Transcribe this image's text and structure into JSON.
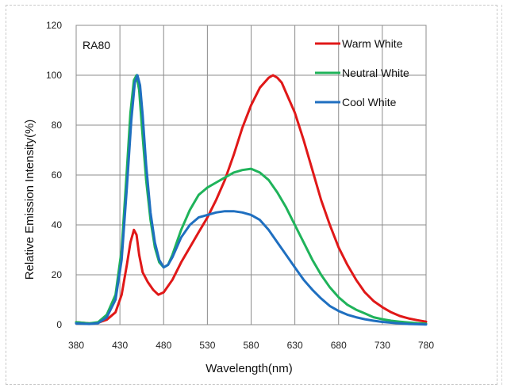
{
  "chart_data": {
    "type": "line",
    "title": "",
    "annotation": "RA80",
    "xlabel": "Wavelength(nm)",
    "ylabel": "Relative Emission Intensity(%)",
    "xlim": [
      380,
      780
    ],
    "ylim": [
      0,
      120
    ],
    "xticks": [
      "380",
      "430",
      "480",
      "530",
      "580",
      "630",
      "680",
      "730",
      "780"
    ],
    "yticks": [
      "0",
      "20",
      "40",
      "60",
      "80",
      "100",
      "120"
    ],
    "grid": true,
    "legend_position": "top-right",
    "series": [
      {
        "name": "Warm White",
        "color": "#e01818",
        "x": [
          380,
          395,
          405,
          415,
          425,
          432,
          438,
          442,
          446,
          449,
          452,
          456,
          462,
          468,
          474,
          480,
          490,
          500,
          510,
          520,
          530,
          540,
          550,
          560,
          570,
          580,
          590,
          600,
          605,
          610,
          615,
          620,
          630,
          640,
          650,
          660,
          670,
          680,
          690,
          700,
          710,
          720,
          730,
          740,
          750,
          760,
          770,
          780
        ],
        "y": [
          1,
          0.5,
          0.8,
          2,
          5,
          12,
          24,
          33,
          38,
          36,
          28,
          21,
          17,
          14,
          12,
          13,
          18,
          25,
          31,
          37,
          43,
          50,
          58,
          68,
          79,
          88,
          95,
          99,
          100,
          99,
          97,
          93,
          85,
          74,
          62,
          50,
          40,
          31,
          24,
          18,
          13,
          9.5,
          7,
          5,
          3.5,
          2.5,
          1.8,
          1.2
        ]
      },
      {
        "name": "Neutral White",
        "color": "#1fb35a",
        "x": [
          380,
          395,
          405,
          415,
          425,
          432,
          438,
          442,
          446,
          449,
          452,
          455,
          460,
          465,
          470,
          475,
          480,
          485,
          490,
          500,
          510,
          520,
          530,
          540,
          550,
          560,
          570,
          580,
          590,
          600,
          610,
          620,
          630,
          640,
          650,
          660,
          670,
          680,
          690,
          700,
          710,
          720,
          730,
          740,
          750,
          760,
          770,
          780
        ],
        "y": [
          1,
          0.5,
          1,
          4,
          12,
          30,
          62,
          85,
          98,
          100,
          94,
          80,
          58,
          42,
          31,
          25,
          23,
          24,
          28,
          38,
          46,
          52,
          55,
          57,
          59,
          61,
          62,
          62.5,
          61,
          58,
          53,
          47,
          40,
          33,
          26,
          20,
          15,
          11,
          8,
          6,
          4.5,
          3,
          2.2,
          1.6,
          1.2,
          0.9,
          0.6,
          0.4
        ]
      },
      {
        "name": "Cool White",
        "color": "#1f6fc0",
        "x": [
          380,
          395,
          405,
          415,
          425,
          432,
          438,
          443,
          447,
          450,
          453,
          456,
          460,
          465,
          470,
          475,
          480,
          485,
          490,
          500,
          510,
          520,
          530,
          540,
          550,
          560,
          570,
          580,
          590,
          600,
          610,
          620,
          630,
          640,
          650,
          660,
          670,
          680,
          690,
          700,
          710,
          720,
          730,
          740,
          750,
          760,
          770,
          780
        ],
        "y": [
          0.5,
          0.3,
          0.6,
          3,
          10,
          26,
          55,
          82,
          97,
          100,
          96,
          84,
          64,
          45,
          33,
          26,
          23,
          24,
          27,
          35,
          40,
          43,
          44,
          45,
          45.5,
          45.5,
          45,
          44,
          42,
          38,
          33,
          28,
          23,
          18,
          14,
          10.5,
          7.5,
          5.5,
          4,
          3,
          2.2,
          1.6,
          1.1,
          0.8,
          0.5,
          0.3,
          0.2,
          0.1
        ]
      }
    ]
  }
}
